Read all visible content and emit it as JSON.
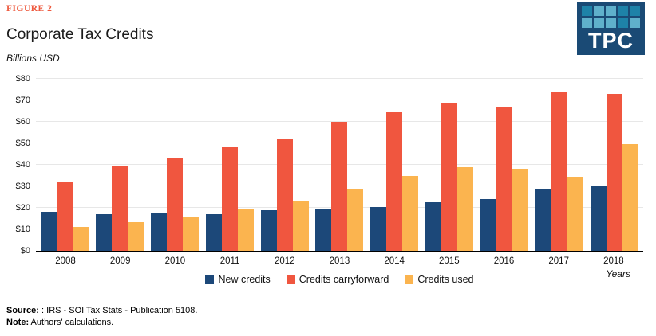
{
  "figure_label": "FIGURE 2",
  "title": "Corporate Tax Credits",
  "units_label": "Billions USD",
  "logo": {
    "text": "TPC",
    "background": "#1A4A75",
    "tile_colors": {
      "med": "#1E82A8",
      "light": "#5FB0CB"
    },
    "tiles": [
      "med",
      "light",
      "light",
      "med",
      "med",
      "light",
      "light",
      "light",
      "med",
      "light"
    ]
  },
  "chart_data": {
    "type": "bar",
    "title": "Corporate Tax Credits",
    "ylabel": "Billions USD",
    "xlabel": "Years",
    "ylim": [
      0,
      80
    ],
    "yticks": [
      0,
      10,
      20,
      30,
      40,
      50,
      60,
      70,
      80
    ],
    "ytick_prefix": "$",
    "grid": true,
    "legend_position": "bottom",
    "categories": [
      "2008",
      "2009",
      "2010",
      "2011",
      "2012",
      "2013",
      "2014",
      "2015",
      "2016",
      "2017",
      "2018"
    ],
    "series": [
      {
        "name": "New credits",
        "color": "#1C4879",
        "values": [
          18,
          17,
          17.5,
          17,
          19,
          19.5,
          20.5,
          22.5,
          24,
          28.5,
          30
        ]
      },
      {
        "name": "Credits carryforward",
        "color": "#F0563F",
        "values": [
          32,
          39.5,
          43,
          48.5,
          52,
          60,
          64.5,
          69,
          67,
          74,
          73
        ]
      },
      {
        "name": "Credits used",
        "color": "#FBB44F",
        "values": [
          11,
          13.5,
          15.5,
          19.5,
          23,
          28.5,
          35,
          39,
          38,
          34.5,
          49.5
        ]
      }
    ]
  },
  "footer": {
    "source_label": "Source:",
    "source_text": " : IRS - SOI Tax Stats - Publication 5108.",
    "note_label": "Note:",
    "note_text": " Authors' calculations."
  }
}
